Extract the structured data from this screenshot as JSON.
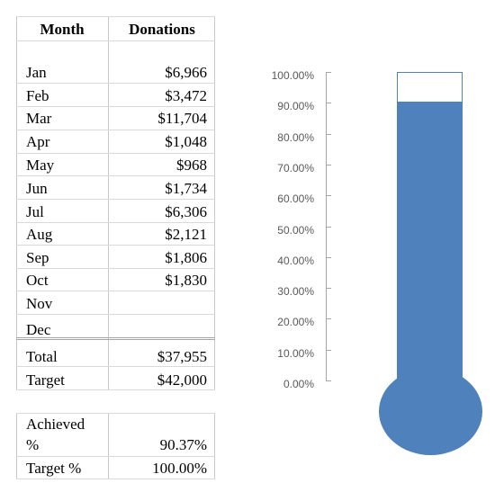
{
  "table": {
    "header": {
      "month": "Month",
      "donations": "Donations"
    },
    "rows": [
      {
        "month": "Jan",
        "value": "$6,966"
      },
      {
        "month": "Feb",
        "value": "$3,472"
      },
      {
        "month": "Mar",
        "value": "$11,704"
      },
      {
        "month": "Apr",
        "value": "$1,048"
      },
      {
        "month": "May",
        "value": "$968"
      },
      {
        "month": "Jun",
        "value": "$1,734"
      },
      {
        "month": "Jul",
        "value": "$6,306"
      },
      {
        "month": "Aug",
        "value": "$2,121"
      },
      {
        "month": "Sep",
        "value": "$1,806"
      },
      {
        "month": "Oct",
        "value": "$1,830"
      },
      {
        "month": "Nov",
        "value": ""
      },
      {
        "month": "Dec",
        "value": ""
      }
    ],
    "total": {
      "label": "Total",
      "value": "$37,955"
    },
    "target": {
      "label": "Target",
      "value": "$42,000"
    }
  },
  "summary": {
    "achieved_label_1": "Achieved",
    "achieved_label_2": "%",
    "achieved_value": "90.37%",
    "target_pct_label": "Target %",
    "target_pct_value": "100.00%"
  },
  "chart_data": {
    "type": "bar",
    "title": "",
    "xlabel": "",
    "ylabel": "",
    "ylim": [
      0,
      1
    ],
    "tick_labels": [
      "100.00%",
      "90.00%",
      "80.00%",
      "70.00%",
      "60.00%",
      "50.00%",
      "40.00%",
      "30.00%",
      "20.00%",
      "10.00%",
      "0.00%"
    ],
    "categories": [
      ""
    ],
    "series": [
      {
        "values": [
          0.9037
        ]
      },
      {
        "values": [
          1.0
        ]
      }
    ],
    "colors": {
      "fill": "#4f81bd",
      "outline": "#4f81bd",
      "empty": "#ffffff"
    },
    "grid": false
  }
}
